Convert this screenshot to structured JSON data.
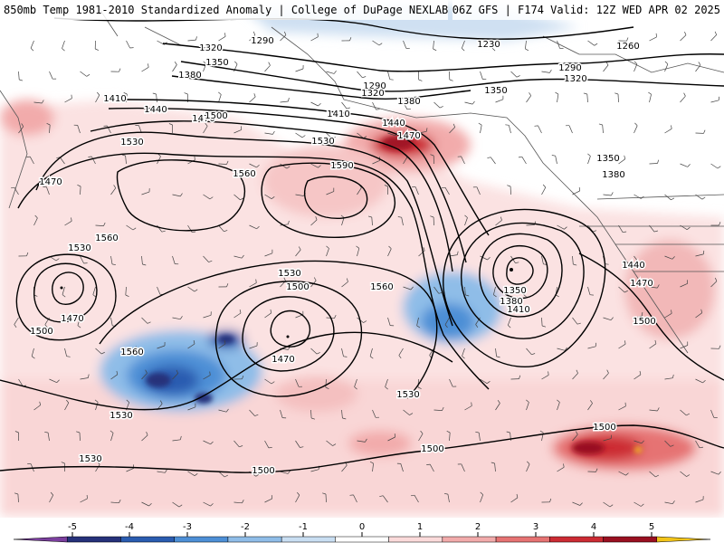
{
  "header": {
    "left": "850mb Temp 1981-2010 Standardized Anomaly | College of DuPage NEXLAB",
    "right": "06Z GFS | F174 Valid: 12Z WED APR 02 2025"
  },
  "colorbar": {
    "tick_labels": [
      "-5",
      "-4",
      "-3",
      "-2",
      "-1",
      "0",
      "1",
      "2",
      "3",
      "4",
      "5"
    ],
    "colors": [
      "#7b3f9e",
      "#26317a",
      "#2a5cb0",
      "#4d8fd6",
      "#8fbde8",
      "#c9def2",
      "#ffffff",
      "#fbdada",
      "#f2abab",
      "#e67373",
      "#cc2b33",
      "#991021",
      "#f2c419"
    ]
  },
  "map": {
    "contour_labels": [
      {
        "text": "1320"
      },
      {
        "text": "1290"
      },
      {
        "text": "1350"
      },
      {
        "text": "1380"
      },
      {
        "text": "1410"
      },
      {
        "text": "1440"
      },
      {
        "text": "1470"
      },
      {
        "text": "1500"
      },
      {
        "text": "1530"
      },
      {
        "text": "1560"
      },
      {
        "text": "1590"
      },
      {
        "text": "1230"
      },
      {
        "text": "1260"
      },
      {
        "text": "1290"
      },
      {
        "text": "1320"
      },
      {
        "text": "1290"
      },
      {
        "text": "1320"
      },
      {
        "text": "1380"
      },
      {
        "text": "1410"
      },
      {
        "text": "1440"
      },
      {
        "text": "1470"
      },
      {
        "text": "1530"
      },
      {
        "text": "1350"
      },
      {
        "text": "1350"
      },
      {
        "text": "1380"
      },
      {
        "text": "1470"
      },
      {
        "text": "1530"
      },
      {
        "text": "1560"
      },
      {
        "text": "1470"
      },
      {
        "text": "1500"
      },
      {
        "text": "1530"
      },
      {
        "text": "1500"
      },
      {
        "text": "1470"
      },
      {
        "text": "1560"
      },
      {
        "text": "1560"
      },
      {
        "text": "1530"
      },
      {
        "text": "1350"
      },
      {
        "text": "1380"
      },
      {
        "text": "1410"
      },
      {
        "text": "1440"
      },
      {
        "text": "1470"
      },
      {
        "text": "1500"
      },
      {
        "text": "1530"
      },
      {
        "text": "1500"
      },
      {
        "text": "1500"
      },
      {
        "text": "1500"
      },
      {
        "text": "1530"
      }
    ]
  }
}
